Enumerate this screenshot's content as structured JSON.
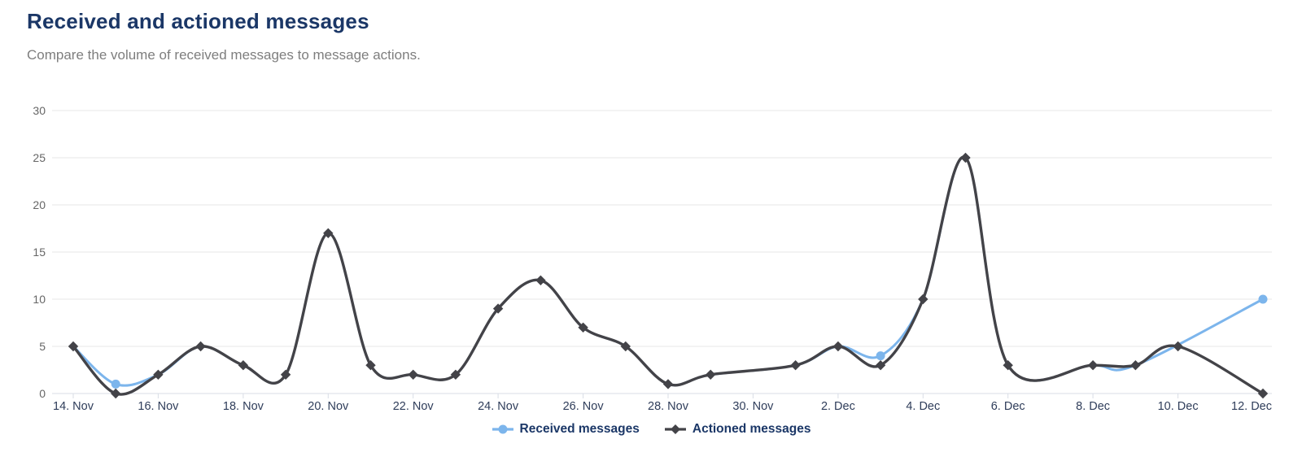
{
  "chart_data": {
    "type": "line",
    "smooth": true,
    "title": "Received and actioned messages",
    "subtitle": "Compare the volume of received messages to message actions.",
    "xlabel": "",
    "ylabel": "",
    "categories": [
      "14. Nov",
      "15. Nov",
      "16. Nov",
      "17. Nov",
      "18. Nov",
      "19. Nov",
      "20. Nov",
      "21. Nov",
      "22. Nov",
      "23. Nov",
      "24. Nov",
      "25. Nov",
      "26. Nov",
      "27. Nov",
      "28. Nov",
      "29. Nov",
      "30. Nov",
      "1. Dec",
      "2. Dec",
      "3. Dec",
      "4. Dec",
      "5. Dec",
      "6. Dec",
      "7. Dec",
      "8. Dec",
      "9. Dec",
      "10. Dec",
      "11. Dec",
      "12. Dec"
    ],
    "x_label_interval": 2,
    "series": [
      {
        "name": "Received messages",
        "color": "#7cb5ec",
        "marker": "circle",
        "values": [
          5,
          1,
          2,
          5,
          3,
          2,
          17,
          3,
          2,
          2,
          9,
          12,
          7,
          5,
          1,
          2,
          null,
          3,
          5,
          4,
          10,
          25,
          3,
          null,
          3,
          3,
          null,
          null,
          10
        ]
      },
      {
        "name": "Actioned messages",
        "color": "#434348",
        "marker": "diamond",
        "values": [
          5,
          0,
          2,
          5,
          3,
          2,
          17,
          3,
          2,
          2,
          9,
          12,
          7,
          5,
          1,
          2,
          null,
          3,
          5,
          3,
          10,
          25,
          3,
          null,
          3,
          3,
          5,
          null,
          0
        ]
      }
    ],
    "ylim": [
      0,
      30
    ],
    "yticks": [
      0,
      5,
      10,
      15,
      20,
      25,
      30
    ],
    "grid": "horizontal",
    "legend_position": "bottom-center"
  },
  "theme": {
    "title_color": "#1b3767",
    "subtitle_color": "#7e7e7e",
    "legend_text_color": "#1b3767",
    "x_label_color": "#2f3d5a",
    "y_label_color": "#666666",
    "grid_color": "#e7e7e7",
    "axis_line_color": "#d8dde6",
    "background": "#ffffff"
  }
}
